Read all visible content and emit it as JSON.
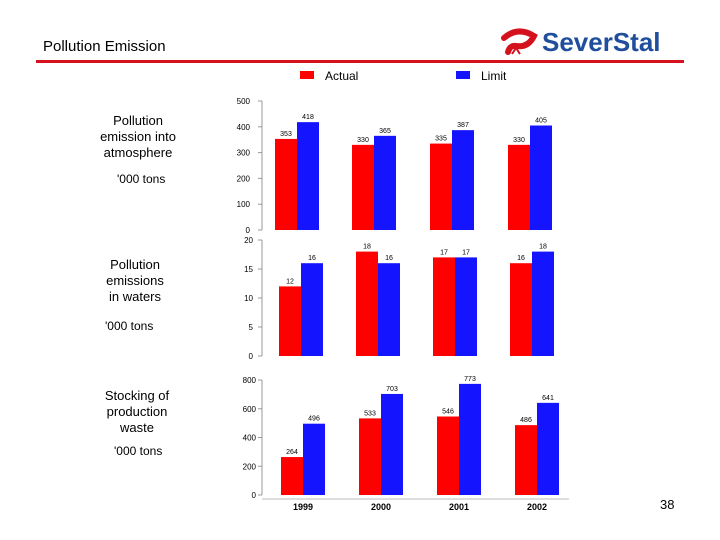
{
  "header": {
    "title": "Pollution Emission",
    "brand": "SeverStal"
  },
  "legend": [
    {
      "label": "Actual",
      "color": "#ff0000"
    },
    {
      "label": "Limit",
      "color": "#1414ff"
    }
  ],
  "rows": [
    {
      "label_lines": [
        "Pollution",
        "emission into",
        "atmosphere"
      ],
      "unit": "'000 tons"
    },
    {
      "label_lines": [
        "Pollution",
        "emissions",
        "in waters"
      ],
      "unit": "'000 tons"
    },
    {
      "label_lines": [
        "Stocking of",
        "production",
        "waste"
      ],
      "unit": "'000 tons"
    }
  ],
  "chart_data": [
    {
      "type": "bar",
      "title": "Pollution emission into atmosphere",
      "categories": [
        "1999",
        "2000",
        "2001",
        "2002"
      ],
      "ylim": [
        0,
        500
      ],
      "yticks": [
        0,
        100,
        200,
        300,
        400,
        500
      ],
      "series": [
        {
          "name": "Actual",
          "values": [
            353,
            330,
            335,
            330
          ]
        },
        {
          "name": "Limit",
          "values": [
            418,
            365,
            387,
            405
          ]
        }
      ],
      "show_xlabels": false
    },
    {
      "type": "bar",
      "title": "Pollution emissions in waters",
      "categories": [
        "1999",
        "2000",
        "2001",
        "2002"
      ],
      "ylim": [
        0,
        20
      ],
      "yticks": [
        0,
        5,
        10,
        15,
        20
      ],
      "series": [
        {
          "name": "Actual",
          "values": [
            12,
            18,
            17,
            16
          ]
        },
        {
          "name": "Limit",
          "values": [
            16,
            16,
            17,
            18
          ]
        }
      ],
      "show_xlabels": false
    },
    {
      "type": "bar",
      "title": "Stocking of production waste",
      "categories": [
        "1999",
        "2000",
        "2001",
        "2002"
      ],
      "ylim": [
        0,
        800
      ],
      "yticks": [
        0,
        200,
        400,
        600,
        800
      ],
      "series": [
        {
          "name": "Actual",
          "values": [
            264,
            533,
            546,
            486
          ]
        },
        {
          "name": "Limit",
          "values": [
            496,
            703,
            773,
            641
          ]
        }
      ],
      "show_xlabels": true
    }
  ],
  "footer": {
    "page_number": "38"
  }
}
